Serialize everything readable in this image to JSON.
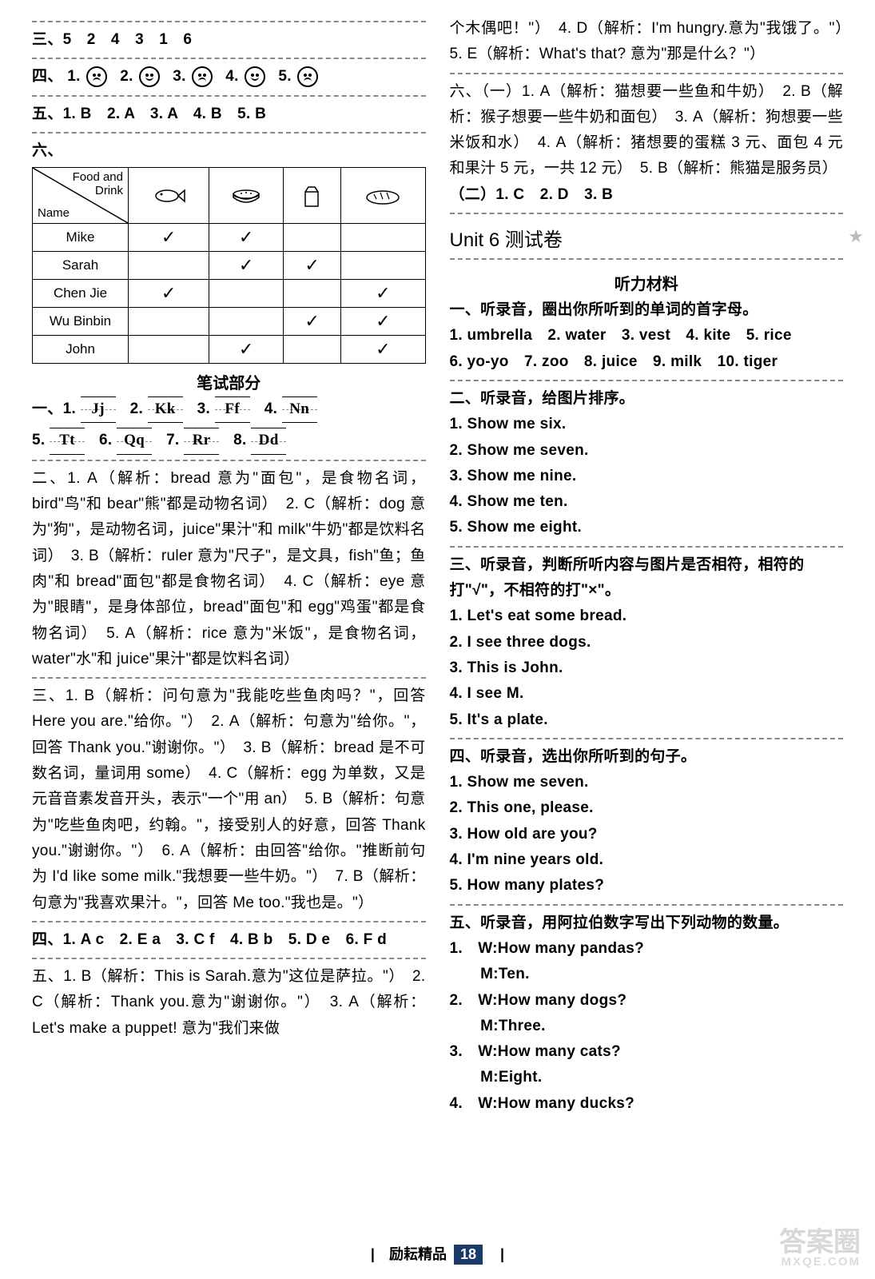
{
  "left": {
    "q3": "三、5　2　4　3　1　6",
    "q4_label": "四、",
    "q4_items": [
      {
        "n": "1.",
        "face": "sad"
      },
      {
        "n": "2.",
        "face": "happy"
      },
      {
        "n": "3.",
        "face": "sad"
      },
      {
        "n": "4.",
        "face": "happy"
      },
      {
        "n": "5.",
        "face": "sad"
      }
    ],
    "q5": "五、1. B　2. A　3. A　4. B　5. B",
    "q6_label": "六、",
    "table": {
      "diag_top": "Food and\nDrink",
      "diag_bot": "Name",
      "rows": [
        "Mike",
        "Sarah",
        "Chen Jie",
        "Wu Binbin",
        "John"
      ],
      "grid": [
        [
          "✓",
          "✓",
          "",
          ""
        ],
        [
          "",
          "✓",
          "✓",
          ""
        ],
        [
          "✓",
          "",
          "",
          "✓"
        ],
        [
          "",
          "",
          "✓",
          "✓"
        ],
        [
          "",
          "✓",
          "",
          "✓"
        ]
      ]
    },
    "written_title": "笔试部分",
    "w1_label": "一、",
    "w1_items": [
      "1.",
      "2.",
      "3.",
      "4.",
      "5.",
      "6.",
      "7.",
      "8."
    ],
    "w1_hw": [
      "Jj",
      "Kk",
      "Ff",
      "Nn",
      "Tt",
      "Qq",
      "Rr",
      "Dd"
    ],
    "w2": "二、1. A（解析：bread 意为\"面包\"，是食物名词，bird\"鸟\"和 bear\"熊\"都是动物名词）　2. C（解析：dog 意为\"狗\"，是动物名词，juice\"果汁\"和 milk\"牛奶\"都是饮料名词）　3. B（解析：ruler 意为\"尺子\"，是文具，fish\"鱼；鱼肉\"和 bread\"面包\"都是食物名词）　4. C（解析：eye 意为\"眼睛\"，是身体部位，bread\"面包\"和 egg\"鸡蛋\"都是食物名词）　5. A（解析：rice 意为\"米饭\"，是食物名词，water\"水\"和 juice\"果汁\"都是饮料名词）",
    "w3": "三、1. B（解析：问句意为\"我能吃些鱼肉吗？\"，回答 Here you are.\"给你。\"）　2. A（解析：句意为\"给你。\"，回答 Thank you.\"谢谢你。\"）　3. B（解析：bread 是不可数名词，量词用 some）　4. C（解析：egg 为单数，又是元音音素发音开头，表示\"一个\"用 an）　5. B（解析：句意为\"吃些鱼肉吧，约翰。\"，接受别人的好意，回答 Thank you.\"谢谢你。\"）　6. A（解析：由回答\"给你。\"推断前句为 I'd like some milk.\"我想要一些牛奶。\"）　7. B（解析：句意为\"我喜欢果汁。\"，回答 Me too.\"我也是。\"）",
    "w4": "四、1. A c　2. E a　3. C f　4. B b　5. D e　6. F d",
    "w5": "五、1. B（解析：This is Sarah.意为\"这位是萨拉。\"）　2. C（解析：Thank you.意为\"谢谢你。\"）　3. A（解析：Let's make a puppet! 意为\"我们来做"
  },
  "right": {
    "cont": "个木偶吧！\"）　4. D（解析：I'm hungry.意为\"我饿了。\"）　5. E（解析：What's that? 意为\"那是什么？\"）",
    "q6a": "六、（一）1. A（解析：猫想要一些鱼和牛奶）　2. B（解析：猴子想要一些牛奶和面包）　3. A（解析：狗想要一些米饭和水）　4. A（解析：猪想要的蛋糕 3 元、面包 4 元和果汁 5 元，一共 12 元）　5. B（解析：熊猫是服务员）",
    "q6b": "（二）1. C　2. D　3. B",
    "unit_title": "Unit 6 测试卷",
    "listen_title": "听力材料",
    "l1_head": "一、听录音，圈出你所听到的单词的首字母。",
    "l1_body": "1. umbrella　2. water　3. vest　4. kite　5. rice\n6. yo-yo　7. zoo　8. juice　9. milk　10. tiger",
    "l2_head": "二、听录音，给图片排序。",
    "l2_lines": [
      "1. Show me six.",
      "2. Show me seven.",
      "3. Show me nine.",
      "4. Show me ten.",
      "5. Show me eight."
    ],
    "l3_head": "三、听录音，判断所听内容与图片是否相符，相符的打\"√\"，不相符的打\"×\"。",
    "l3_lines": [
      "1. Let's eat some bread.",
      "2. I see three dogs.",
      "3. This is John.",
      "4. I see M.",
      "5. It's a plate."
    ],
    "l4_head": "四、听录音，选出你所听到的句子。",
    "l4_lines": [
      "1. Show me seven.",
      "2. This one, please.",
      "3. How old are you?",
      "4. I'm nine years old.",
      "5. How many plates?"
    ],
    "l5_head": "五、听录音，用阿拉伯数字写出下列动物的数量。",
    "l5_lines": [
      "1.　W:How many pandas?",
      "　　M:Ten.",
      "2.　W:How many dogs?",
      "　　M:Three.",
      "3.　W:How many cats?",
      "　　M:Eight.",
      "4.　W:How many ducks?"
    ]
  },
  "footer": {
    "left": "励耘精品",
    "page": "18"
  },
  "watermark": {
    "big": "答案圈",
    "small": "MXQE.COM"
  }
}
